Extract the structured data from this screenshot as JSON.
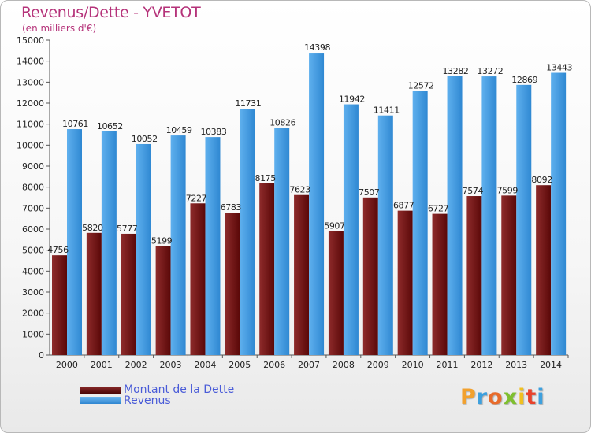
{
  "header": {
    "title": "Revenus/Dette - YVETOT",
    "subtitle": "(en milliers d'€)"
  },
  "colors": {
    "debt": "#6e1212",
    "revenue": "#3d97e0",
    "title": "#b5337a",
    "legend_text": "#4a5cd8"
  },
  "legend": {
    "debt_label": "Montant de la Dette",
    "revenue_label": "Revenus"
  },
  "logo": {
    "text": "Proxiti",
    "letter_colors": [
      "#f2a12e",
      "#3da0de",
      "#e86b2b",
      "#7fbf2f",
      "#f0c020",
      "#e8422b",
      "#3da0de"
    ]
  },
  "chart_data": {
    "type": "bar",
    "title": "Revenus/Dette - YVETOT",
    "subtitle": "(en milliers d'€)",
    "categories": [
      "2000",
      "2001",
      "2002",
      "2003",
      "2004",
      "2005",
      "2006",
      "2007",
      "2008",
      "2009",
      "2010",
      "2011",
      "2012",
      "2013",
      "2014"
    ],
    "series": [
      {
        "name": "Montant de la Dette",
        "values": [
          4756,
          5820,
          5777,
          5199,
          7227,
          6783,
          8175,
          7623,
          5907,
          7507,
          6877,
          6727,
          7574,
          7599,
          8092
        ],
        "labels": [
          "4756",
          "5820",
          "5777",
          "5199",
          "7227",
          "6783",
          "8175",
          "7623",
          "5907",
          "7507",
          "6877",
          "6727",
          "7574",
          "7599",
          "8092"
        ]
      },
      {
        "name": "Revenus",
        "values": [
          10761,
          10652,
          10052,
          10459,
          10383,
          11731,
          10826,
          14398,
          11942,
          11411,
          12572,
          13282,
          13272,
          12869,
          13443
        ],
        "labels": [
          "10761",
          "10652",
          "10052",
          "10459",
          "10383",
          "11731",
          "10826",
          "14398",
          "11942",
          "11411",
          "12572",
          "13282",
          "13272",
          "12869",
          "13443"
        ]
      }
    ],
    "ylim": [
      0,
      15000
    ],
    "yticks": [
      "0",
      "1000",
      "2000",
      "3000",
      "4000",
      "5000",
      "6000",
      "7000",
      "8000",
      "9000",
      "10000",
      "11000",
      "12000",
      "13000",
      "14000",
      "15000"
    ],
    "grid": false,
    "legend_position": "bottom-left"
  }
}
